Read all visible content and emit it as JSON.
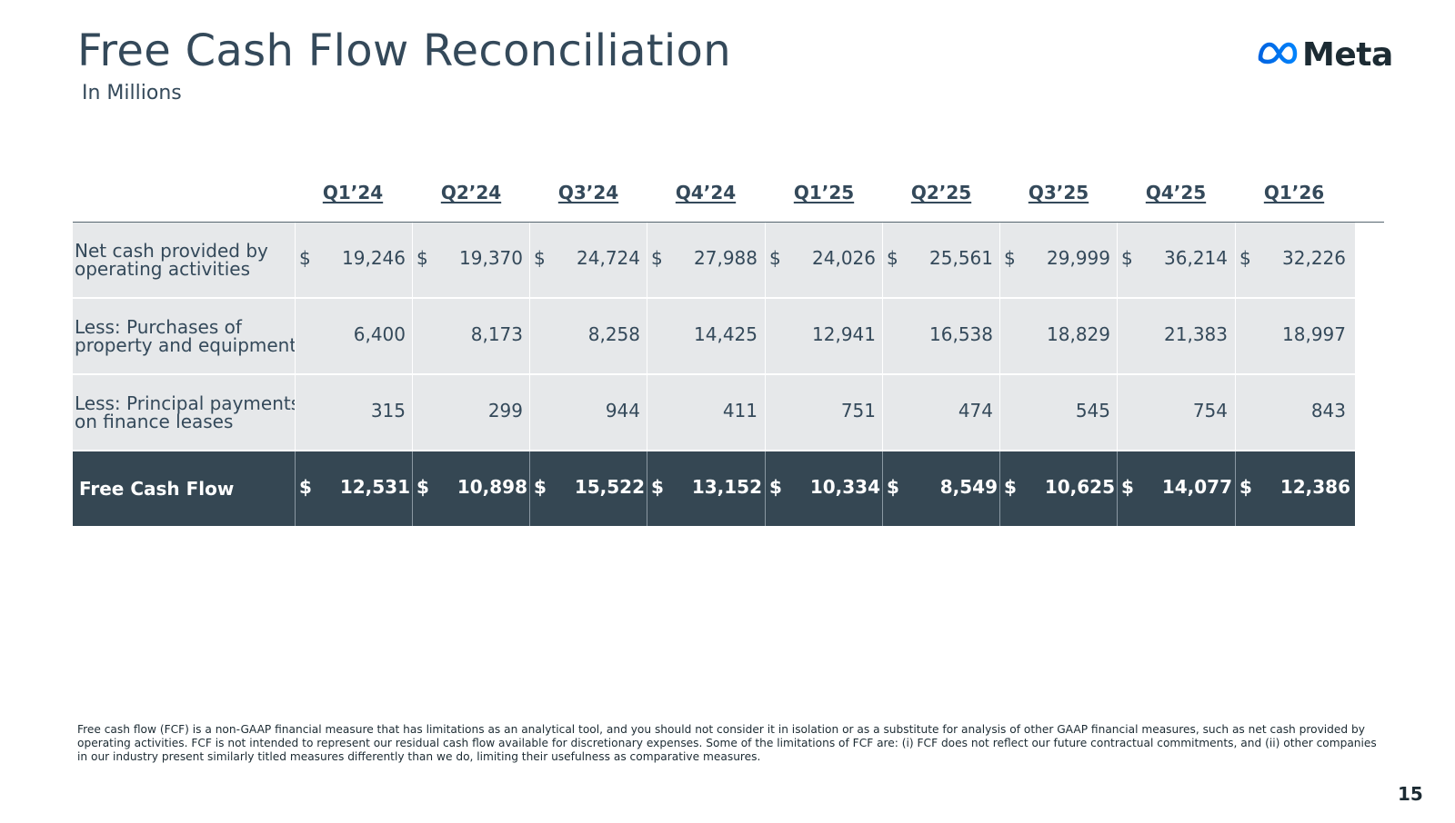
{
  "header": {
    "title": "Free Cash Flow Reconciliation",
    "subtitle": "In Millions",
    "logo_text": "Meta",
    "logo_icon": "meta-infinity-icon",
    "logo_color": "#0866ff"
  },
  "table": {
    "columns": [
      "Q1’24",
      "Q2’24",
      "Q3’24",
      "Q4’24",
      "Q1’25",
      "Q2’25",
      "Q3’25",
      "Q4’25",
      "Q1’26"
    ],
    "rows": [
      {
        "label_line1": "Net cash provided by",
        "label_line2": "operating activities",
        "currency": "$",
        "values": [
          "19,246",
          "19,370",
          "24,724",
          "27,988",
          "24,026",
          "25,561",
          "29,999",
          "36,214",
          "32,226"
        ]
      },
      {
        "label_line1": "Less: Purchases of",
        "label_line2": "property and equipment",
        "currency": "",
        "values": [
          "6,400",
          "8,173",
          "8,258",
          "14,425",
          "12,941",
          "16,538",
          "18,829",
          "21,383",
          "18,997"
        ]
      },
      {
        "label_line1": "Less: Principal payments",
        "label_line2": "on finance leases",
        "currency": "",
        "values": [
          "315",
          "299",
          "944",
          "411",
          "751",
          "474",
          "545",
          "754",
          "843"
        ]
      }
    ],
    "total": {
      "label": "Free Cash Flow",
      "currency": "$",
      "values": [
        "12,531",
        "10,898",
        "15,522",
        "13,152",
        "10,334",
        "8,549",
        "10,625",
        "14,077",
        "12,386"
      ]
    }
  },
  "footnote": "Free cash flow (FCF) is a non-GAAP financial measure that has limitations as an analytical tool, and you should not consider it in isolation or as a substitute for analysis of other GAAP financial measures, such as net cash provided by operating activities. FCF is not intended to represent our residual cash flow available for discretionary expenses. Some of the limitations of FCF are: (i) FCF does not reflect our future contractual commitments, and (ii) other companies in our industry present similarly titled measures differently than we do, limiting their usefulness as comparative measures.",
  "page_number": "15"
}
